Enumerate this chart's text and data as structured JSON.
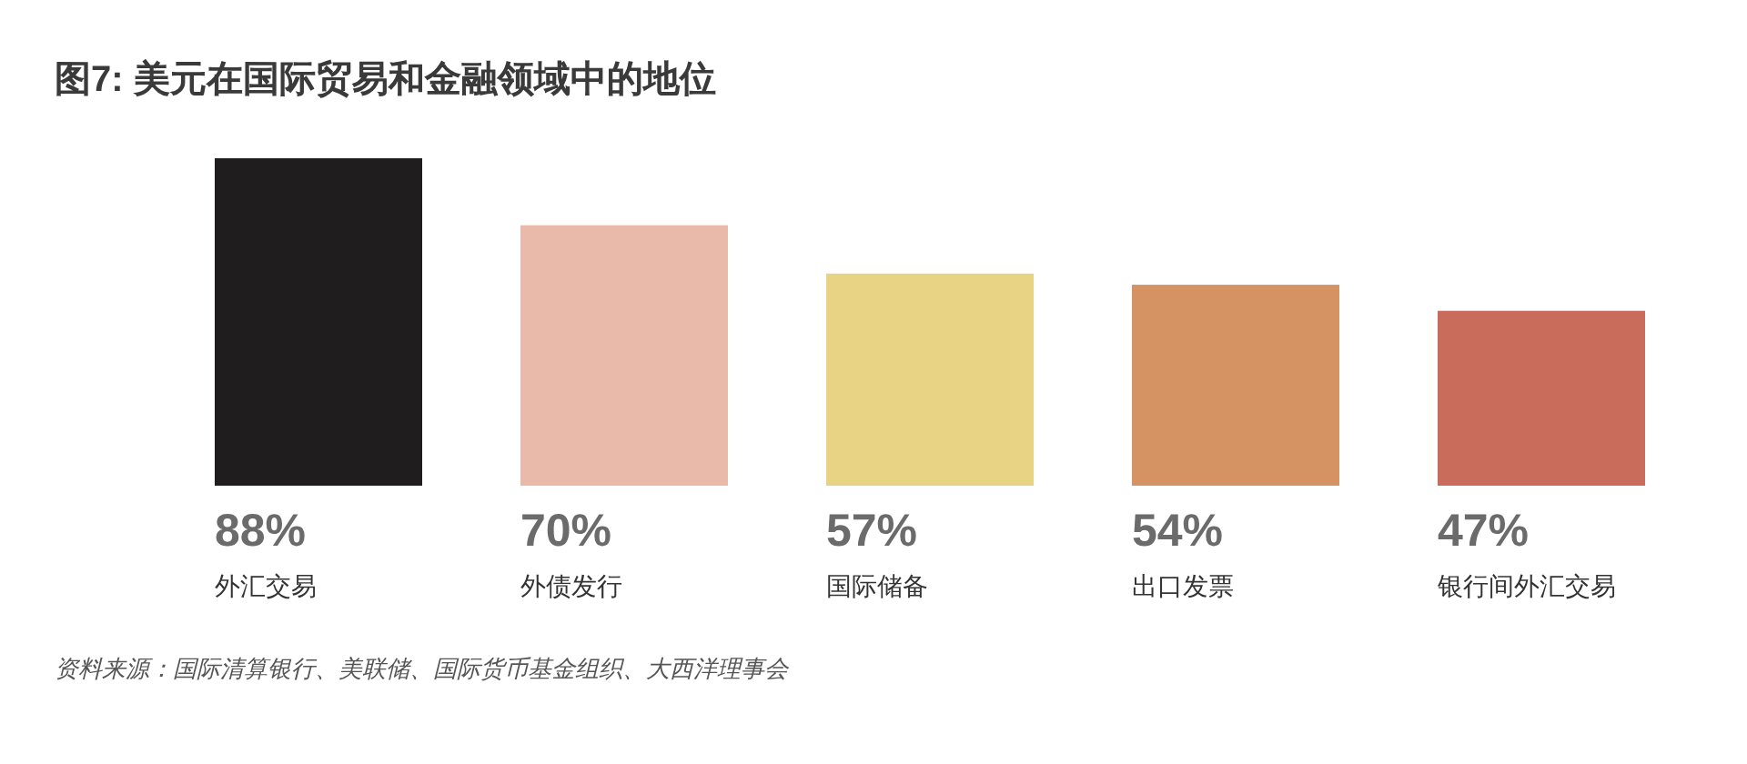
{
  "chart_data": {
    "type": "bar",
    "title": "图7: 美元在国际贸易和金融领域中的地位",
    "categories": [
      "外汇交易",
      "外债发行",
      "国际储备",
      "出口发票",
      "银行间外汇交易"
    ],
    "values": [
      88,
      70,
      57,
      54,
      47
    ],
    "colors": [
      "#1f1d1d",
      "#e9b9a9",
      "#e8d283",
      "#d59262",
      "#c96c5b"
    ],
    "value_labels": [
      "88%",
      "70%",
      "57%",
      "54%",
      "47%"
    ],
    "annotations": [
      "资料来源：国际清算银行、美联储、国际货币基金组织、大西洋理事会"
    ]
  }
}
